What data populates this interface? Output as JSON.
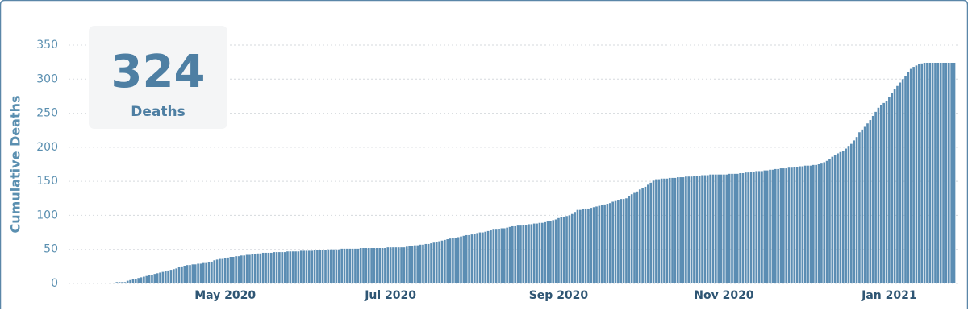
{
  "chart_data": {
    "type": "bar",
    "y_label": "Cumulative Deaths",
    "annotation": {
      "number": 324,
      "label": "Deaths"
    },
    "color": "#5b8db3",
    "grid": true,
    "ylim": [
      0,
      350
    ],
    "yticks": [
      0,
      50,
      100,
      150,
      200,
      250,
      300,
      350
    ],
    "categories": [
      null,
      null,
      null,
      null,
      null,
      null,
      null,
      null,
      null,
      null,
      null,
      null,
      null,
      null,
      null,
      null,
      null,
      null,
      null,
      null,
      null,
      null,
      null,
      null,
      null,
      null,
      null,
      null,
      null,
      null,
      null,
      null,
      null,
      null,
      null,
      null,
      null,
      null,
      null,
      null,
      null,
      null,
      null,
      null,
      null,
      "May 2020",
      null,
      null,
      null,
      null,
      null,
      null,
      null,
      null,
      null,
      null,
      null,
      null,
      null,
      null,
      null,
      null,
      null,
      null,
      null,
      null,
      null,
      null,
      null,
      null,
      null,
      null,
      null,
      null,
      null,
      null,
      null,
      null,
      null,
      null,
      null,
      null,
      null,
      null,
      null,
      null,
      null,
      null,
      null,
      null,
      null,
      null,
      null,
      null,
      null,
      null,
      null,
      null,
      null,
      null,
      null,
      null,
      null,
      null,
      null,
      null,
      "Jul 2020",
      null,
      null,
      null,
      null,
      null,
      null,
      null,
      null,
      null,
      null,
      null,
      null,
      null,
      null,
      null,
      null,
      null,
      null,
      null,
      null,
      null,
      null,
      null,
      null,
      null,
      null,
      null,
      null,
      null,
      null,
      null,
      null,
      null,
      null,
      null,
      null,
      null,
      null,
      null,
      null,
      null,
      null,
      null,
      null,
      null,
      null,
      null,
      null,
      null,
      null,
      null,
      null,
      null,
      null,
      null,
      null,
      null,
      null,
      null,
      null,
      null,
      "Sep 2020",
      null,
      null,
      null,
      null,
      null,
      null,
      null,
      null,
      null,
      null,
      null,
      null,
      null,
      null,
      null,
      null,
      null,
      null,
      null,
      null,
      null,
      null,
      null,
      null,
      null,
      null,
      null,
      null,
      null,
      null,
      null,
      null,
      null,
      null,
      null,
      null,
      null,
      null,
      null,
      null,
      null,
      null,
      null,
      null,
      null,
      null,
      null,
      null,
      null,
      null,
      null,
      null,
      null,
      null,
      null,
      null,
      null,
      null,
      null,
      null,
      "Nov 2020",
      null,
      null,
      null,
      null,
      null,
      null,
      null,
      null,
      null,
      null,
      null,
      null,
      null,
      null,
      null,
      null,
      null,
      null,
      null,
      null,
      null,
      null,
      null,
      null,
      null,
      null,
      null,
      null,
      null,
      null,
      null,
      null,
      null,
      null,
      null,
      null,
      null,
      null,
      null,
      null,
      null,
      null,
      null,
      null,
      null,
      null,
      null,
      null,
      null,
      null,
      null,
      null,
      null,
      null,
      null,
      null,
      null,
      null,
      null,
      null,
      "Jan 2021",
      null,
      null,
      null,
      null,
      null,
      null,
      null,
      null,
      null,
      null,
      null,
      null,
      null,
      null,
      null,
      null,
      null,
      null,
      null,
      null,
      null,
      null,
      null,
      null
    ],
    "values": [
      1,
      1,
      1,
      1,
      1,
      2,
      2,
      2,
      2,
      4,
      5,
      6,
      7,
      8,
      9,
      10,
      11,
      12,
      13,
      14,
      15,
      16,
      17,
      18,
      19,
      20,
      21,
      22,
      24,
      25,
      26,
      27,
      27,
      28,
      28,
      29,
      29,
      30,
      30,
      31,
      32,
      34,
      35,
      36,
      36,
      37,
      38,
      39,
      39,
      40,
      40,
      41,
      41,
      42,
      42,
      43,
      43,
      44,
      44,
      45,
      45,
      45,
      45,
      46,
      46,
      46,
      46,
      46,
      47,
      47,
      47,
      47,
      47,
      48,
      48,
      48,
      48,
      48,
      49,
      49,
      49,
      49,
      49,
      50,
      50,
      50,
      50,
      50,
      51,
      51,
      51,
      51,
      51,
      51,
      51,
      52,
      52,
      52,
      52,
      52,
      52,
      52,
      52,
      52,
      52,
      53,
      53,
      53,
      53,
      53,
      53,
      53,
      54,
      55,
      55,
      56,
      56,
      57,
      57,
      58,
      58,
      59,
      60,
      61,
      62,
      63,
      64,
      65,
      66,
      67,
      67,
      68,
      69,
      70,
      71,
      71,
      72,
      73,
      74,
      75,
      75,
      76,
      77,
      78,
      79,
      79,
      80,
      81,
      81,
      82,
      83,
      84,
      84,
      85,
      85,
      86,
      86,
      87,
      87,
      88,
      88,
      89,
      89,
      90,
      91,
      92,
      93,
      94,
      96,
      98,
      98,
      99,
      100,
      102,
      105,
      108,
      108,
      109,
      110,
      110,
      111,
      112,
      113,
      114,
      115,
      116,
      117,
      118,
      120,
      121,
      122,
      124,
      124,
      125,
      128,
      131,
      133,
      135,
      138,
      140,
      142,
      145,
      148,
      151,
      153,
      153,
      154,
      154,
      154,
      155,
      155,
      155,
      156,
      156,
      156,
      157,
      157,
      157,
      158,
      158,
      158,
      159,
      159,
      159,
      160,
      160,
      160,
      160,
      160,
      160,
      160,
      161,
      161,
      161,
      161,
      162,
      162,
      163,
      163,
      164,
      164,
      165,
      165,
      165,
      166,
      166,
      167,
      167,
      168,
      168,
      169,
      169,
      169,
      170,
      170,
      171,
      171,
      172,
      172,
      173,
      173,
      173,
      174,
      174,
      175,
      176,
      178,
      180,
      183,
      186,
      188,
      191,
      193,
      195,
      198,
      202,
      205,
      210,
      215,
      222,
      226,
      230,
      235,
      240,
      246,
      252,
      258,
      262,
      265,
      268,
      274,
      280,
      285,
      290,
      295,
      300,
      305,
      310,
      315,
      318,
      320,
      322,
      323,
      324,
      324,
      324,
      324,
      324,
      324,
      324,
      324,
      324,
      324,
      324,
      324
    ]
  }
}
